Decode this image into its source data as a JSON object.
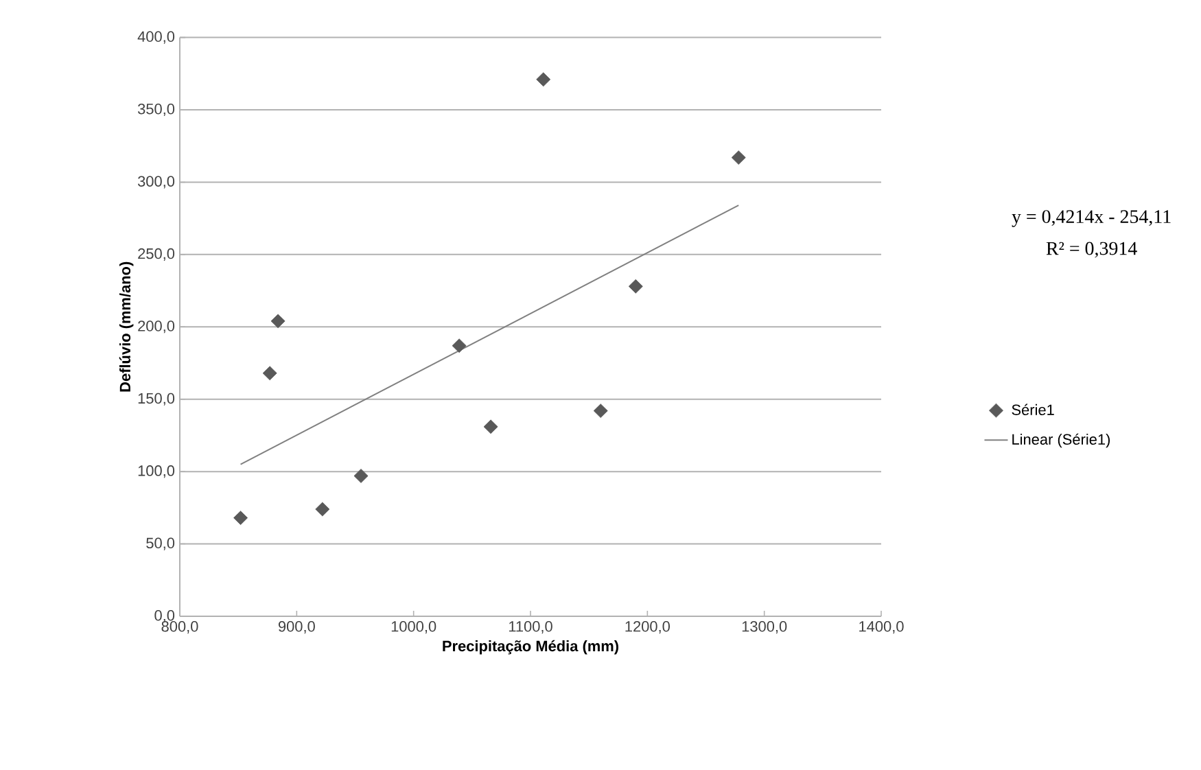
{
  "chart_data": {
    "type": "scatter",
    "xlabel": "Precipitação Média (mm)",
    "ylabel": "Deflúvio (mm/ano)",
    "xlim": [
      800,
      1400
    ],
    "ylim": [
      0,
      400
    ],
    "xticks": [
      {
        "value": 800,
        "label": "800,0"
      },
      {
        "value": 900,
        "label": "900,0"
      },
      {
        "value": 1000,
        "label": "1000,0"
      },
      {
        "value": 1100,
        "label": "1100,0"
      },
      {
        "value": 1200,
        "label": "1200,0"
      },
      {
        "value": 1300,
        "label": "1300,0"
      },
      {
        "value": 1400,
        "label": "1400,0"
      }
    ],
    "yticks": [
      {
        "value": 0,
        "label": "0,0"
      },
      {
        "value": 50,
        "label": "50,0"
      },
      {
        "value": 100,
        "label": "100,0"
      },
      {
        "value": 150,
        "label": "150,0"
      },
      {
        "value": 200,
        "label": "200,0"
      },
      {
        "value": 250,
        "label": "250,0"
      },
      {
        "value": 300,
        "label": "300,0"
      },
      {
        "value": 350,
        "label": "350,0"
      },
      {
        "value": 400,
        "label": "400,0"
      }
    ],
    "grid": "y",
    "legend": "right",
    "series": [
      {
        "name": "Série1",
        "marker": "diamond",
        "color": "#595959",
        "x": [
          852,
          877,
          884,
          922,
          955,
          1039,
          1066,
          1111,
          1160,
          1190,
          1278
        ],
        "values": [
          68,
          168,
          204,
          74,
          97,
          187,
          131,
          371,
          142,
          228,
          317
        ]
      },
      {
        "name": "Linear (Série1)",
        "type": "line",
        "color": "#808080",
        "x": [
          852,
          1278
        ],
        "values": [
          105,
          284
        ]
      }
    ],
    "annotations": [
      "y = 0,4214x - 254,11",
      "R² = 0,3914"
    ]
  }
}
